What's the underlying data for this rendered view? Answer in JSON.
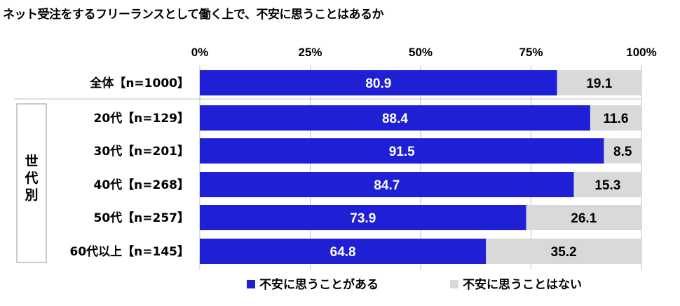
{
  "chart_data": {
    "type": "bar",
    "title": "ネット受注をするフリーランスとして働く上で、不安に思うことはあるか",
    "x_ticks": [
      "0%",
      "25%",
      "50%",
      "75%",
      "100%"
    ],
    "xlim": [
      0,
      100
    ],
    "categories": [
      "全体【n=1000】",
      "20代【n=129】",
      "30代【n=201】",
      "40代【n=268】",
      "50代【n=257】",
      "60代以上【n=145】"
    ],
    "group_label": "世代別",
    "series": [
      {
        "name": "不安に思うことがある",
        "values": [
          80.9,
          88.4,
          91.5,
          84.7,
          73.9,
          64.8
        ],
        "color": "#1f1fd6"
      },
      {
        "name": "不安に思うことはない",
        "values": [
          19.1,
          11.6,
          8.5,
          15.3,
          26.1,
          35.2
        ],
        "color": "#d9d9d9"
      }
    ],
    "stacked": true,
    "legend_position": "bottom",
    "grid": true
  }
}
